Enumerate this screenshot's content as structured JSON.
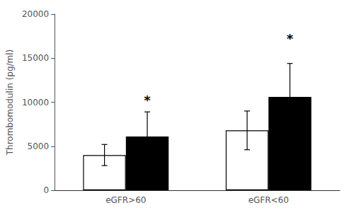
{
  "chart_data": {
    "type": "bar",
    "categories": [
      "eGFR>60",
      "eGFR<60"
    ],
    "series": [
      {
        "color": "#ffffff",
        "values": [
          4000,
          6800
        ],
        "errors": [
          1200,
          2200
        ]
      },
      {
        "color": "#000000",
        "values": [
          6100,
          10600
        ],
        "errors": [
          2800,
          3800
        ]
      }
    ],
    "ylabel": "Thrombomodulin (pg/ml)",
    "ylim": [
      0,
      20000
    ],
    "yticks": [
      0,
      5000,
      10000,
      15000,
      20000
    ],
    "annotations": [
      {
        "text": "*",
        "x": "eGFR>60",
        "y": 9500,
        "series": 1
      },
      {
        "text": "*",
        "x": "eGFR<60",
        "y": 16500,
        "series": 1
      }
    ],
    "grid": false
  }
}
